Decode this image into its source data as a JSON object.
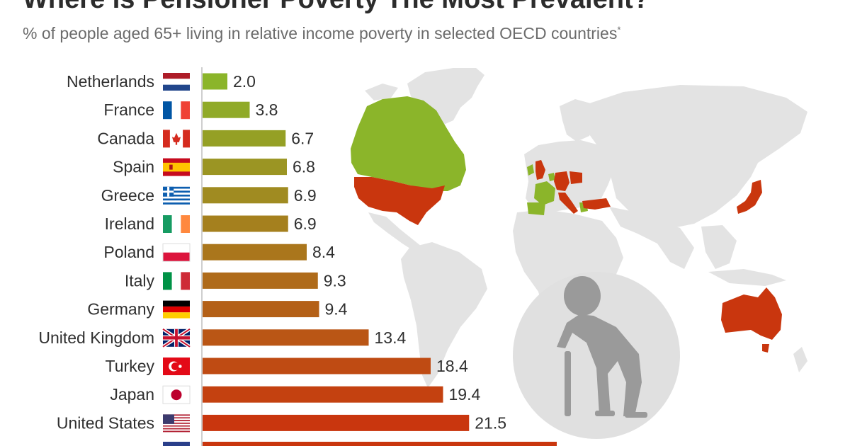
{
  "header": {
    "title": "Where Is Pensioner Poverty The Most Prevalent?",
    "subtitle": "% of people aged 65+ living in relative income poverty in selected OECD countries",
    "subtitle_mark": "*"
  },
  "colors": {
    "land": "#e3e3e3",
    "low": "#8bb52a",
    "high": "#c9360e",
    "figure_circle": "#e0e0e0",
    "figure": "#9a9a9a"
  },
  "chart_data": {
    "type": "bar",
    "orientation": "horizontal",
    "title": "Where Is Pensioner Poverty The Most Prevalent?",
    "subtitle": "% of people aged 65+ living in relative income poverty in selected OECD countries",
    "categories": [
      "Netherlands",
      "France",
      "Canada",
      "Spain",
      "Greece",
      "Ireland",
      "Poland",
      "Italy",
      "Germany",
      "United Kingdom",
      "Turkey",
      "Japan",
      "United States"
    ],
    "values": [
      2.0,
      3.8,
      6.7,
      6.8,
      6.9,
      6.9,
      8.4,
      9.3,
      9.4,
      13.4,
      18.4,
      19.4,
      21.5
    ],
    "value_labels": [
      "2.0",
      "3.8",
      "6.7",
      "6.8",
      "6.9",
      "6.9",
      "8.4",
      "9.3",
      "9.4",
      "13.4",
      "18.4",
      "19.4",
      "21.5"
    ],
    "flags": [
      "netherlands-flag",
      "france-flag",
      "canada-flag",
      "spain-flag",
      "greece-flag",
      "ireland-flag",
      "poland-flag",
      "italy-flag",
      "germany-flag",
      "united-kingdom-flag",
      "turkey-flag",
      "japan-flag",
      "united-states-flag"
    ],
    "xlim": [
      0,
      26
    ]
  }
}
